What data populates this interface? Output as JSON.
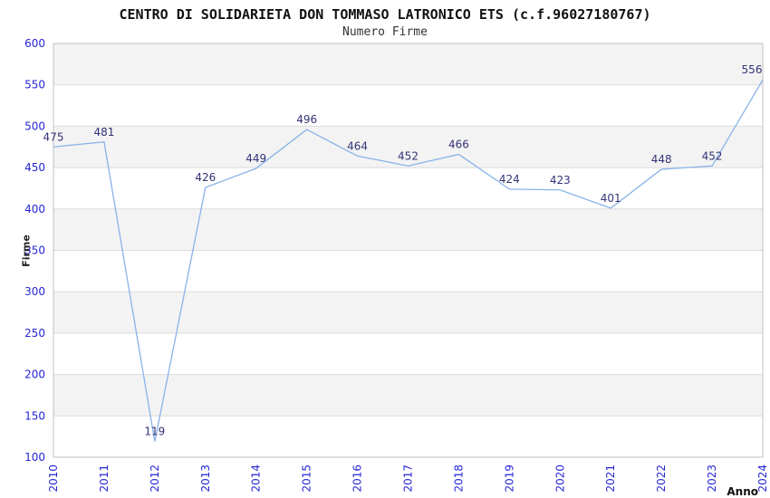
{
  "chart_data": {
    "type": "line",
    "title": "CENTRO DI SOLIDARIETA DON TOMMASO LATRONICO ETS (c.f.96027180767)",
    "subtitle": "Numero Firme",
    "xlabel": "Anno",
    "ylabel": "Firme",
    "categories": [
      "2010",
      "2011",
      "2012",
      "2013",
      "2014",
      "2015",
      "2016",
      "2017",
      "2018",
      "2019",
      "2020",
      "2021",
      "2022",
      "2023",
      "2024"
    ],
    "values": [
      475,
      481,
      119,
      426,
      449,
      496,
      464,
      452,
      466,
      424,
      423,
      401,
      448,
      452,
      556
    ],
    "ylim": [
      100,
      600
    ],
    "ytick_step": 50,
    "grid": true,
    "legend": "none",
    "colors": {
      "line": "#88b3e8",
      "tick_labels": "#2525d4",
      "data_labels": "#333377",
      "band_fill": "#f3f3f3",
      "band_alt_fill": "#ffffff",
      "gridline": "#dcdcdc",
      "plot_border": "#c0c0c0",
      "background": "#ffffff"
    }
  }
}
